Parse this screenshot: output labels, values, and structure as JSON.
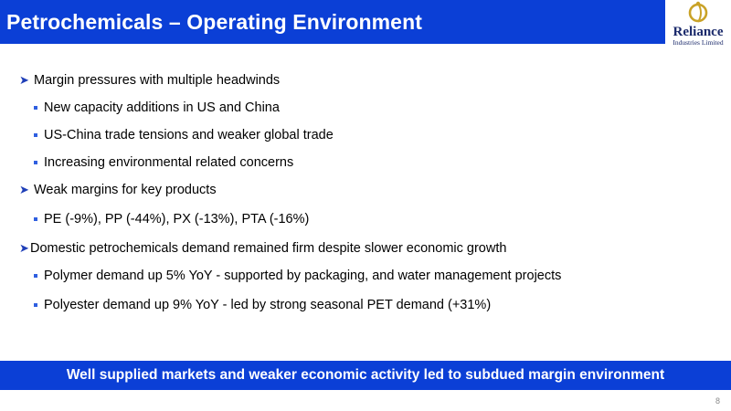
{
  "slide": {
    "title": "Petrochemicals – Operating Environment",
    "logo": {
      "name": "Reliance",
      "subtitle": "Industries Limited",
      "icon": "reliance-logo-icon"
    },
    "bullets": [
      {
        "level": 1,
        "text": "Margin pressures with multiple headwinds"
      },
      {
        "level": 2,
        "text": "New capacity additions in US and China"
      },
      {
        "level": 2,
        "text": "US-China trade tensions and weaker global trade"
      },
      {
        "level": 2,
        "text": "Increasing environmental related concerns"
      },
      {
        "level": 1,
        "text": "Weak margins for key products"
      },
      {
        "level": 2,
        "text": "PE (-9%), PP (-44%), PX (-13%), PTA (-16%)"
      },
      {
        "level": 1,
        "text": "Domestic petrochemicals demand remained firm despite slower economic growth"
      },
      {
        "level": 2,
        "text": "Polymer demand up 5% YoY -  supported by packaging, and water management projects"
      },
      {
        "level": 2,
        "text": "Polyester demand up 9% YoY - led by strong seasonal PET demand (+31%)"
      }
    ],
    "banner": "Well supplied markets and weaker economic activity led to subdued margin environment",
    "page_number": "8",
    "colors": {
      "accent": "#0b3fd6",
      "arrow": "#1f3fb8",
      "bullet_square": "#2f5fe0",
      "logo_gold": "#c9a227",
      "logo_navy": "#1b2a6b"
    }
  }
}
